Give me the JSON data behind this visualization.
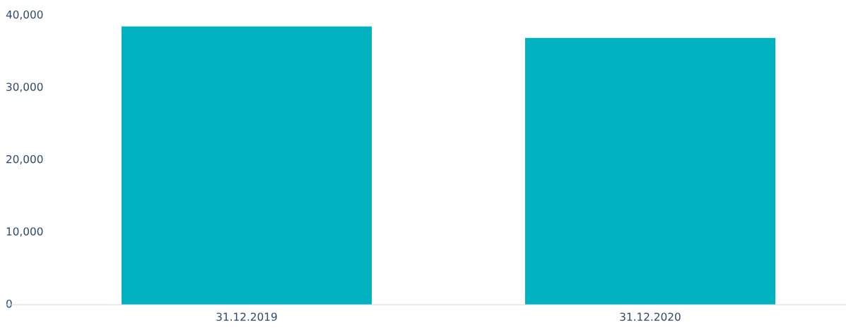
{
  "chart_data": {
    "type": "bar",
    "categories": [
      "31.12.2019",
      "31.12.2020"
    ],
    "values": [
      38500,
      36900
    ],
    "color": "#00b2bf",
    "ylim": [
      0,
      40000
    ],
    "yticks": [
      {
        "value": 0,
        "label": "0"
      },
      {
        "value": 10000,
        "label": "10,000"
      },
      {
        "value": 20000,
        "label": "20,000"
      },
      {
        "value": 30000,
        "label": "30,000"
      },
      {
        "value": 40000,
        "label": "40,000"
      }
    ],
    "grid": false,
    "legend": false
  }
}
